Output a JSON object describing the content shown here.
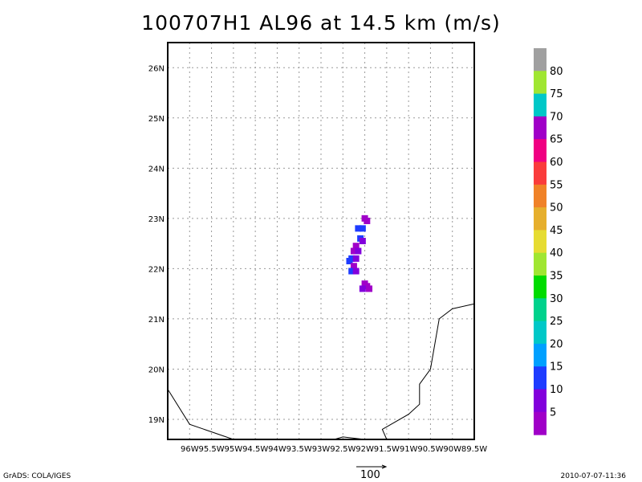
{
  "title": "100707H1 AL96 at 14.5 km (m/s)",
  "footer": {
    "left": "GrADS: COLA/IGES",
    "right": "2010-07-07-11:36",
    "vector_label": "100"
  },
  "map": {
    "lon_range": [
      -96.5,
      -89.5
    ],
    "lat_range": [
      18.6,
      26.5
    ],
    "lat_labels": [
      "26N",
      "25N",
      "24N",
      "23N",
      "22N",
      "21N",
      "20N",
      "19N"
    ],
    "lat_values": [
      26,
      25,
      24,
      23,
      22,
      21,
      20,
      19
    ],
    "lon_labels": [
      "96W",
      "95.5W",
      "95W",
      "94.5W",
      "94W",
      "93.5W",
      "93W",
      "92.5W",
      "92W",
      "91.5W",
      "91W",
      "90.5W",
      "90W",
      "89.5W"
    ],
    "lon_values": [
      -96,
      -95.5,
      -95,
      -94.5,
      -94,
      -93.5,
      -93,
      -92.5,
      -92,
      -91.5,
      -91,
      -90.5,
      -90,
      -89.5
    ],
    "grid": true,
    "coastline_west": [
      [
        -96.5,
        19.6
      ],
      [
        -96.0,
        18.9
      ],
      [
        -95.0,
        18.6
      ]
    ],
    "coastline_south": [
      [
        -92.7,
        18.6
      ],
      [
        -92.5,
        18.65
      ],
      [
        -92.0,
        18.6
      ]
    ],
    "coastline_yucatan": [
      [
        -91.5,
        18.6
      ],
      [
        -91.6,
        18.8
      ],
      [
        -91.0,
        19.1
      ],
      [
        -90.75,
        19.3
      ],
      [
        -90.75,
        19.7
      ],
      [
        -90.5,
        20.0
      ],
      [
        -90.3,
        21.0
      ],
      [
        -90.0,
        21.2
      ],
      [
        -89.5,
        21.3
      ]
    ],
    "wind_cells": [
      {
        "lon": -92.0,
        "lat": 23.0,
        "color": "#a000c8"
      },
      {
        "lon": -91.95,
        "lat": 22.95,
        "color": "#a000c8"
      },
      {
        "lon": -92.15,
        "lat": 22.8,
        "color": "#1e3cff"
      },
      {
        "lon": -92.05,
        "lat": 22.8,
        "color": "#1e3cff"
      },
      {
        "lon": -92.1,
        "lat": 22.6,
        "color": "#1e3cff"
      },
      {
        "lon": -92.05,
        "lat": 22.55,
        "color": "#8200dc"
      },
      {
        "lon": -92.2,
        "lat": 22.45,
        "color": "#a000c8"
      },
      {
        "lon": -92.25,
        "lat": 22.35,
        "color": "#a000c8"
      },
      {
        "lon": -92.15,
        "lat": 22.35,
        "color": "#8200dc"
      },
      {
        "lon": -92.3,
        "lat": 22.2,
        "color": "#1e3cff"
      },
      {
        "lon": -92.2,
        "lat": 22.2,
        "color": "#8200dc"
      },
      {
        "lon": -92.35,
        "lat": 22.15,
        "color": "#1e3cff"
      },
      {
        "lon": -92.25,
        "lat": 22.05,
        "color": "#a000c8"
      },
      {
        "lon": -92.3,
        "lat": 21.95,
        "color": "#1e3cff"
      },
      {
        "lon": -92.2,
        "lat": 21.95,
        "color": "#8200dc"
      },
      {
        "lon": -92.0,
        "lat": 21.7,
        "color": "#a000c8"
      },
      {
        "lon": -91.95,
        "lat": 21.65,
        "color": "#a000c8"
      },
      {
        "lon": -92.05,
        "lat": 21.6,
        "color": "#8200dc"
      },
      {
        "lon": -91.9,
        "lat": 21.6,
        "color": "#a000c8"
      }
    ]
  },
  "colorbar": {
    "labels": [
      "80",
      "75",
      "70",
      "65",
      "60",
      "55",
      "50",
      "45",
      "40",
      "35",
      "30",
      "25",
      "20",
      "15",
      "10",
      "5"
    ],
    "colors": [
      "#a0a0a0",
      "#a0e632",
      "#00c8c8",
      "#a000c8",
      "#f00082",
      "#fa3c3c",
      "#f08228",
      "#e6af2d",
      "#e6dc32",
      "#a0e632",
      "#00dc00",
      "#00d28c",
      "#00c8c8",
      "#00a0ff",
      "#1e3cff",
      "#8200dc",
      "#a000c8"
    ]
  }
}
